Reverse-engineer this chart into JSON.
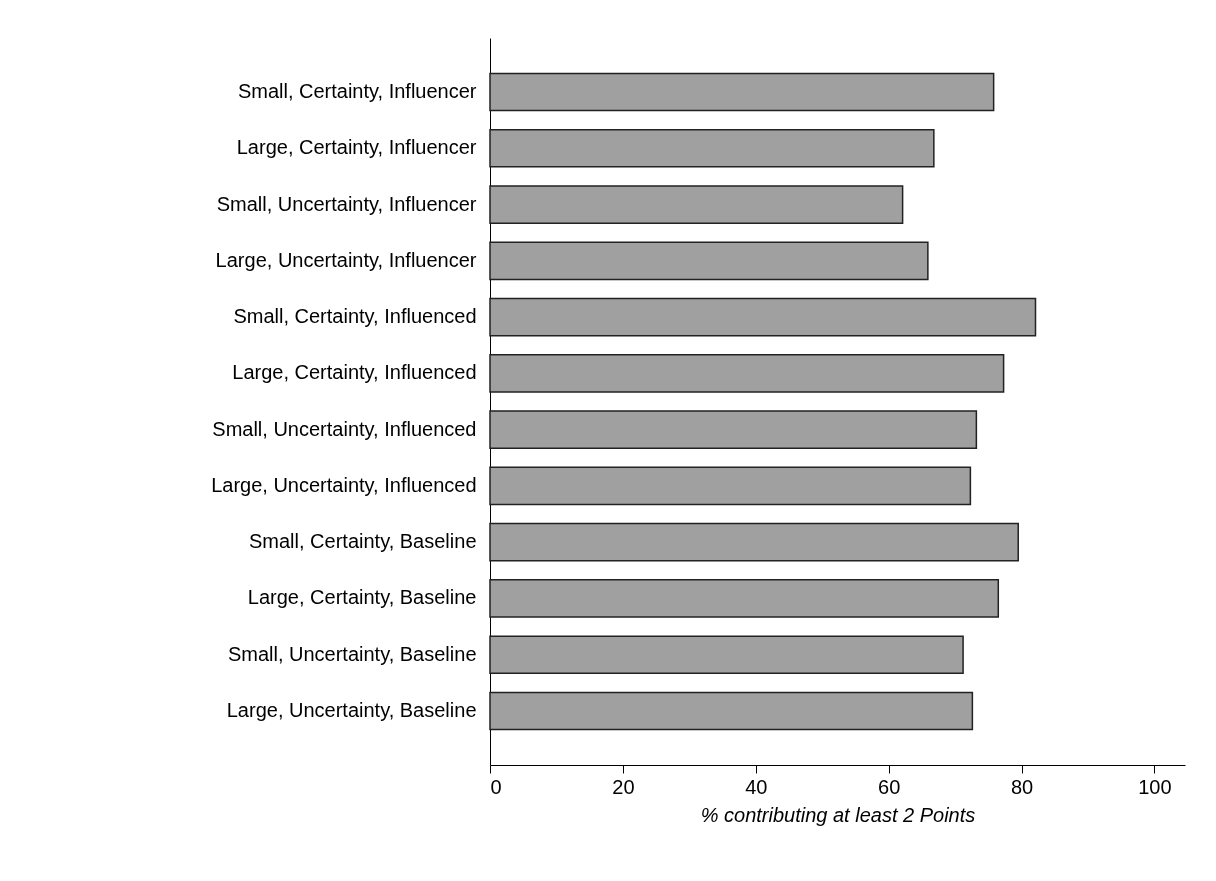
{
  "chart_data": {
    "type": "bar",
    "orientation": "horizontal",
    "xlabel": "% contributing at least 2 Points",
    "categories": [
      "Small, Certainty, Influencer",
      "Large, Certainty, Influencer",
      "Small, Uncertainty, Influencer",
      "Large, Uncertainty, Influencer",
      "Small, Certainty, Influenced",
      "Large, Certainty, Influenced",
      "Small, Uncertainty, Influenced",
      "Large, Uncertainty, Influenced",
      "Small, Certainty, Baseline",
      "Large, Certainty, Baseline",
      "Small, Uncertainty, Baseline",
      "Large, Uncertainty, Baseline"
    ],
    "values": [
      75.8,
      66.8,
      62.1,
      65.9,
      82.1,
      77.3,
      73.2,
      72.3,
      79.5,
      76.5,
      71.2,
      72.6
    ],
    "color": "#a0a0a0",
    "xlim": [
      0,
      104.6
    ],
    "xticks": [
      0,
      20,
      40,
      60,
      80,
      100
    ]
  }
}
